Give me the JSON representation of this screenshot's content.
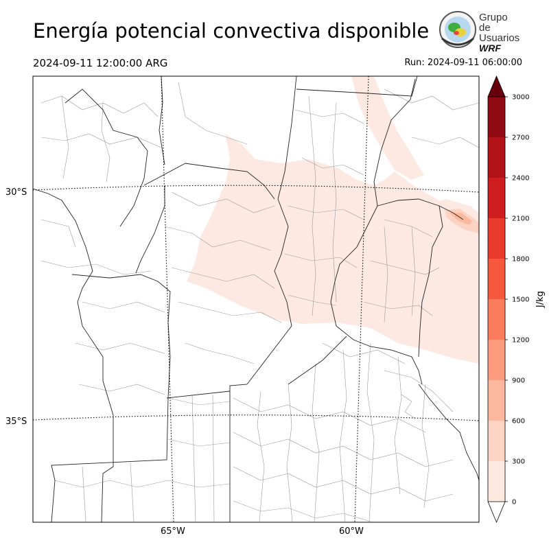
{
  "title": "Energía potencial convectiva disponible",
  "valid_time": "2024-09-11 12:00:00 ARG",
  "run_time": "Run: 2024-09-11 06:00:00",
  "logo": {
    "line1": "Grupo de",
    "line2": "Usuarios",
    "line3": "WRF"
  },
  "map": {
    "lat_labels": [
      "30°S",
      "35°S"
    ],
    "lon_labels": [
      "65°W",
      "60°W"
    ]
  },
  "colorbar": {
    "unit": "J/kg",
    "ticks": [
      "0",
      "300",
      "600",
      "900",
      "1200",
      "1500",
      "1800",
      "2100",
      "2400",
      "2700",
      "3000"
    ],
    "colors": [
      "#fee8df",
      "#fdd5c4",
      "#fcb89f",
      "#fc9b7d",
      "#fb7c5c",
      "#f6583e",
      "#e93a2d",
      "#cf1d1f",
      "#b11218",
      "#8f0a12"
    ],
    "extend_over_color": "#67000d"
  }
}
